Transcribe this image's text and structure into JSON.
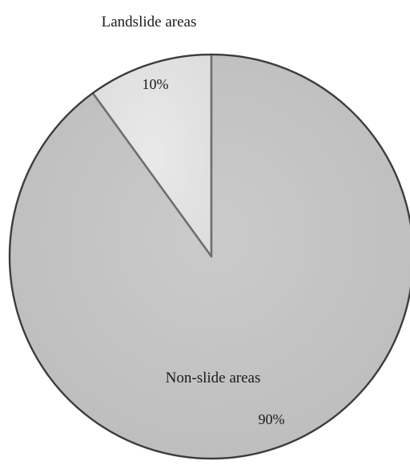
{
  "chart_data": {
    "type": "pie",
    "title": "",
    "categories": [
      "Landslide areas",
      "Non-slide areas"
    ],
    "values": [
      10,
      90
    ],
    "value_labels": [
      "10%",
      "90%"
    ],
    "start_angle_deg": 0,
    "direction": "counterclockwise",
    "legend": "none",
    "colors": {
      "landslide": "#e4e4e4",
      "nonslide": "#c6c6c6",
      "edge": "#3a3a3a",
      "divider": "#6e6e6e"
    }
  }
}
